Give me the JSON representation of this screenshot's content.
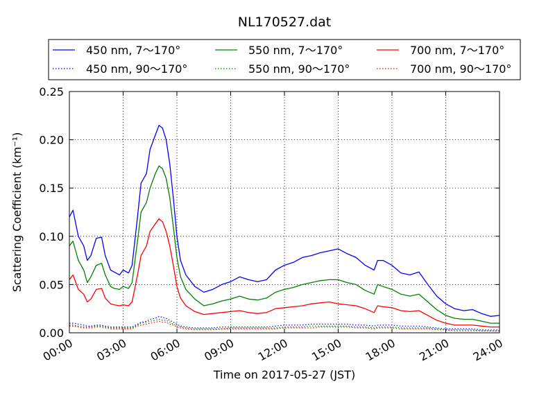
{
  "chart_data": {
    "type": "line",
    "title": "NL170527.dat",
    "xlabel": "Time on 2017-05-27 (JST)",
    "ylabel": "Scattering Coefficient (km⁻¹)",
    "x_unit": "hours",
    "xlim": [
      0,
      24
    ],
    "ylim": [
      0,
      0.25
    ],
    "x_ticks": [
      0,
      3,
      6,
      9,
      12,
      15,
      18,
      21,
      24
    ],
    "x_tick_labels": [
      "00:00",
      "03:00",
      "06:00",
      "09:00",
      "12:00",
      "15:00",
      "18:00",
      "21:00",
      "24:00"
    ],
    "y_ticks": [
      0,
      0.05,
      0.1,
      0.15,
      0.2,
      0.25
    ],
    "y_tick_labels": [
      "0.00",
      "0.05",
      "0.10",
      "0.15",
      "0.20",
      "0.25"
    ],
    "grid": true,
    "legend_position": "top",
    "colors": {
      "blue": "#0000ff",
      "green": "#008000",
      "red": "#ff0000"
    },
    "x": [
      0.0,
      0.2,
      0.5,
      0.8,
      1.0,
      1.2,
      1.5,
      1.8,
      2.0,
      2.3,
      2.5,
      2.8,
      3.0,
      3.3,
      3.5,
      3.8,
      4.0,
      4.3,
      4.5,
      4.8,
      5.0,
      5.2,
      5.4,
      5.6,
      5.8,
      6.0,
      6.2,
      6.5,
      7.0,
      7.5,
      8.0,
      8.5,
      9.0,
      9.5,
      10.0,
      10.5,
      11.0,
      11.5,
      12.0,
      12.5,
      13.0,
      13.5,
      14.0,
      14.5,
      15.0,
      15.5,
      16.0,
      16.5,
      17.0,
      17.2,
      17.5,
      18.0,
      18.5,
      19.0,
      19.5,
      20.0,
      20.5,
      21.0,
      21.5,
      22.0,
      22.5,
      23.0,
      23.5,
      24.0
    ],
    "series": [
      {
        "name": "450 nm, 7～170°",
        "color": "blue",
        "style": "solid",
        "values": [
          0.12,
          0.127,
          0.1,
          0.09,
          0.075,
          0.08,
          0.098,
          0.099,
          0.08,
          0.065,
          0.063,
          0.06,
          0.065,
          0.062,
          0.07,
          0.12,
          0.155,
          0.165,
          0.19,
          0.205,
          0.215,
          0.212,
          0.2,
          0.175,
          0.14,
          0.1,
          0.075,
          0.06,
          0.048,
          0.042,
          0.045,
          0.05,
          0.053,
          0.058,
          0.055,
          0.053,
          0.055,
          0.065,
          0.07,
          0.073,
          0.078,
          0.08,
          0.083,
          0.085,
          0.087,
          0.082,
          0.078,
          0.07,
          0.065,
          0.075,
          0.075,
          0.07,
          0.062,
          0.06,
          0.063,
          0.05,
          0.038,
          0.03,
          0.025,
          0.023,
          0.024,
          0.02,
          0.017,
          0.018
        ]
      },
      {
        "name": "450 nm, 90～170°",
        "color": "blue",
        "style": "dotted",
        "values": [
          0.01,
          0.01,
          0.009,
          0.008,
          0.007,
          0.007,
          0.008,
          0.008,
          0.007,
          0.006,
          0.006,
          0.006,
          0.006,
          0.006,
          0.006,
          0.009,
          0.011,
          0.012,
          0.014,
          0.015,
          0.017,
          0.016,
          0.015,
          0.013,
          0.011,
          0.009,
          0.007,
          0.006,
          0.005,
          0.005,
          0.005,
          0.006,
          0.006,
          0.006,
          0.006,
          0.006,
          0.006,
          0.007,
          0.008,
          0.008,
          0.008,
          0.009,
          0.009,
          0.009,
          0.009,
          0.009,
          0.008,
          0.008,
          0.007,
          0.008,
          0.008,
          0.008,
          0.007,
          0.007,
          0.007,
          0.006,
          0.005,
          0.004,
          0.004,
          0.004,
          0.004,
          0.003,
          0.003,
          0.003
        ]
      },
      {
        "name": "550 nm, 7～170°",
        "color": "green",
        "style": "solid",
        "values": [
          0.09,
          0.095,
          0.075,
          0.065,
          0.052,
          0.058,
          0.07,
          0.072,
          0.06,
          0.048,
          0.046,
          0.045,
          0.048,
          0.046,
          0.052,
          0.095,
          0.125,
          0.135,
          0.15,
          0.165,
          0.173,
          0.17,
          0.16,
          0.14,
          0.11,
          0.078,
          0.058,
          0.045,
          0.035,
          0.028,
          0.03,
          0.033,
          0.035,
          0.038,
          0.035,
          0.034,
          0.036,
          0.042,
          0.045,
          0.047,
          0.05,
          0.052,
          0.054,
          0.055,
          0.055,
          0.052,
          0.05,
          0.044,
          0.04,
          0.05,
          0.048,
          0.045,
          0.04,
          0.038,
          0.04,
          0.032,
          0.024,
          0.018,
          0.015,
          0.014,
          0.014,
          0.012,
          0.01,
          0.01
        ]
      },
      {
        "name": "550 nm, 90～170°",
        "color": "green",
        "style": "dotted",
        "values": [
          0.008,
          0.008,
          0.007,
          0.006,
          0.006,
          0.006,
          0.007,
          0.007,
          0.006,
          0.005,
          0.005,
          0.005,
          0.005,
          0.005,
          0.005,
          0.008,
          0.01,
          0.011,
          0.012,
          0.013,
          0.014,
          0.013,
          0.013,
          0.011,
          0.009,
          0.007,
          0.006,
          0.005,
          0.004,
          0.004,
          0.004,
          0.004,
          0.005,
          0.005,
          0.005,
          0.005,
          0.005,
          0.005,
          0.006,
          0.006,
          0.006,
          0.007,
          0.007,
          0.007,
          0.007,
          0.007,
          0.006,
          0.006,
          0.005,
          0.006,
          0.006,
          0.006,
          0.005,
          0.005,
          0.005,
          0.005,
          0.004,
          0.003,
          0.003,
          0.003,
          0.003,
          0.002,
          0.002,
          0.002
        ]
      },
      {
        "name": "700 nm, 7～170°",
        "color": "red",
        "style": "solid",
        "values": [
          0.055,
          0.06,
          0.045,
          0.04,
          0.032,
          0.035,
          0.045,
          0.046,
          0.036,
          0.03,
          0.029,
          0.028,
          0.029,
          0.028,
          0.032,
          0.06,
          0.08,
          0.09,
          0.105,
          0.113,
          0.118,
          0.115,
          0.105,
          0.09,
          0.07,
          0.048,
          0.036,
          0.028,
          0.022,
          0.019,
          0.02,
          0.021,
          0.022,
          0.023,
          0.021,
          0.02,
          0.021,
          0.025,
          0.026,
          0.027,
          0.028,
          0.03,
          0.031,
          0.032,
          0.03,
          0.029,
          0.028,
          0.025,
          0.021,
          0.028,
          0.027,
          0.026,
          0.023,
          0.022,
          0.023,
          0.018,
          0.013,
          0.01,
          0.008,
          0.008,
          0.008,
          0.007,
          0.006,
          0.006
        ]
      },
      {
        "name": "700 nm, 90～170°",
        "color": "red",
        "style": "dotted",
        "values": [
          0.007,
          0.007,
          0.006,
          0.005,
          0.005,
          0.005,
          0.006,
          0.006,
          0.005,
          0.004,
          0.004,
          0.004,
          0.004,
          0.004,
          0.004,
          0.007,
          0.008,
          0.009,
          0.01,
          0.011,
          0.012,
          0.011,
          0.011,
          0.009,
          0.008,
          0.006,
          0.005,
          0.004,
          0.003,
          0.003,
          0.003,
          0.004,
          0.004,
          0.004,
          0.004,
          0.004,
          0.004,
          0.004,
          0.005,
          0.005,
          0.005,
          0.005,
          0.006,
          0.006,
          0.006,
          0.006,
          0.005,
          0.005,
          0.004,
          0.005,
          0.005,
          0.005,
          0.004,
          0.004,
          0.004,
          0.004,
          0.003,
          0.003,
          0.002,
          0.002,
          0.002,
          0.002,
          0.002,
          0.002
        ]
      }
    ]
  }
}
